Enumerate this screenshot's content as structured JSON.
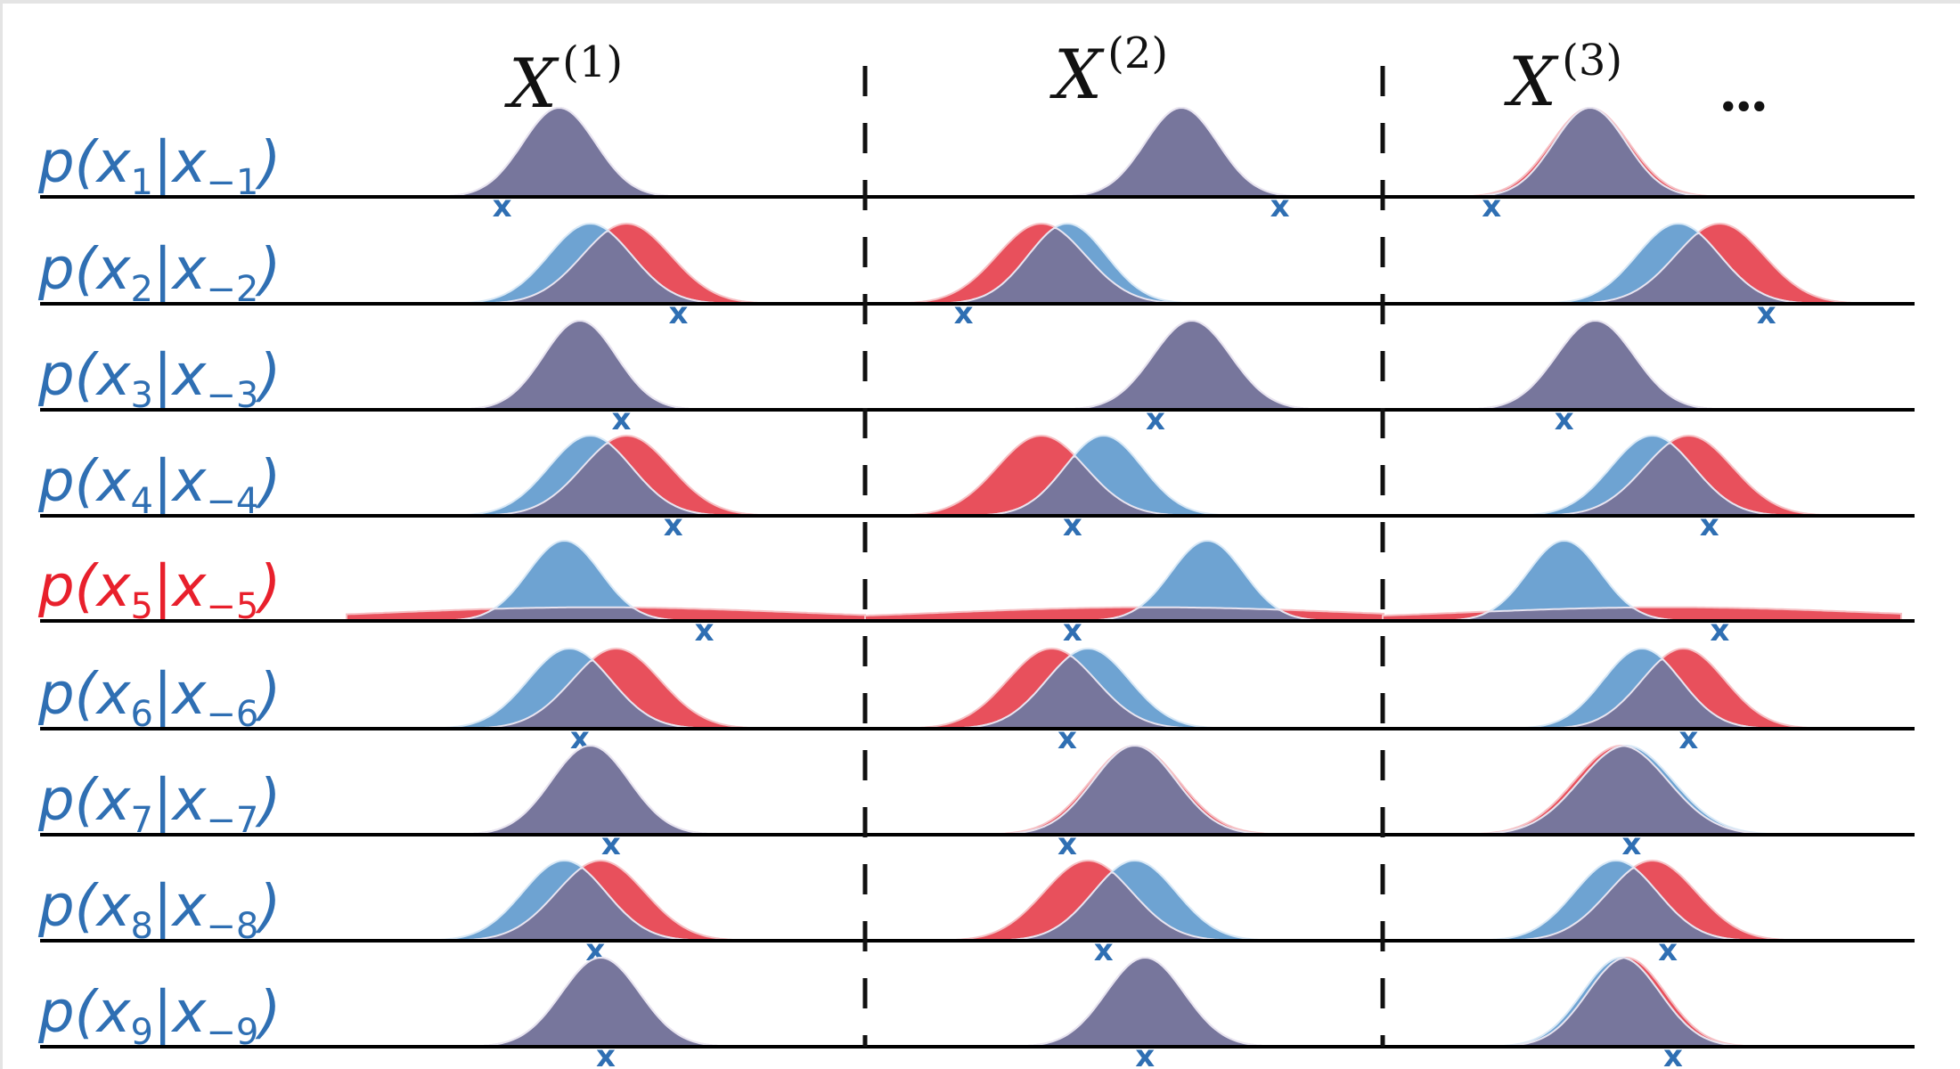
{
  "colors": {
    "blue": "#2f6fb3",
    "blue_fill": "#6ea3d2",
    "red_fill": "#e8505c",
    "red": "#e8202c",
    "overlap": "#77769c",
    "axis": "#000000"
  },
  "headers": [
    {
      "base": "X",
      "sup": "(1)"
    },
    {
      "base": "X",
      "sup": "(2)"
    },
    {
      "base": "X",
      "sup": "(3)"
    }
  ],
  "ellipsis": "...",
  "chart_data": {
    "type": "area",
    "description_units": "position within column (0-100)",
    "columns": [
      "X(1)",
      "X(2)",
      "X(3)"
    ],
    "rows": [
      {
        "label": {
          "p": "p(",
          "v": "x",
          "sub": "1",
          "bar": "|",
          "nv": "x",
          "nsub": "−1",
          "close": ")"
        },
        "highlight": false,
        "cells": [
          {
            "blue": [
              41,
              7
            ],
            "red": [
              41,
              7
            ],
            "marker": 30
          },
          {
            "blue": [
              61,
              7
            ],
            "red": [
              61,
              7
            ],
            "marker": 80
          },
          {
            "blue": [
              40,
              7
            ],
            "red": [
              40,
              7.5
            ],
            "marker": 21
          }
        ]
      },
      {
        "label": {
          "p": "p(",
          "v": "x",
          "sub": "2",
          "bar": "|",
          "nv": "x",
          "nsub": "−2",
          "close": ")"
        },
        "highlight": false,
        "cells": [
          {
            "blue": [
              47,
              8
            ],
            "red": [
              54,
              8.5
            ],
            "marker": 64
          },
          {
            "blue": [
              39,
              7.5
            ],
            "red": [
              34,
              8.5
            ],
            "marker": 19
          },
          {
            "blue": [
              57,
              8
            ],
            "red": [
              65,
              8.5
            ],
            "marker": 74
          }
        ]
      },
      {
        "label": {
          "p": "p(",
          "v": "x",
          "sub": "3",
          "bar": "|",
          "nv": "x",
          "nsub": "−3",
          "close": ")"
        },
        "highlight": false,
        "cells": [
          {
            "blue": [
              45,
              7
            ],
            "red": [
              45,
              7
            ],
            "marker": 53
          },
          {
            "blue": [
              63,
              7.5
            ],
            "red": [
              63,
              7.5
            ],
            "marker": 56
          },
          {
            "blue": [
              41,
              7.5
            ],
            "red": [
              41,
              7.5
            ],
            "marker": 35
          }
        ]
      },
      {
        "label": {
          "p": "p(",
          "v": "x",
          "sub": "4",
          "bar": "|",
          "nv": "x",
          "nsub": "−4",
          "close": ")"
        },
        "highlight": false,
        "cells": [
          {
            "blue": [
              47,
              8
            ],
            "red": [
              54,
              8.5
            ],
            "marker": 63
          },
          {
            "blue": [
              46,
              7.5
            ],
            "red": [
              34,
              8.5
            ],
            "marker": 40
          },
          {
            "blue": [
              52,
              8
            ],
            "red": [
              59,
              8.5
            ],
            "marker": 63
          }
        ]
      },
      {
        "label": {
          "p": "p(",
          "v": "x",
          "sub": "5",
          "bar": "|",
          "nv": "x",
          "nsub": "−5",
          "close": ")"
        },
        "highlight": true,
        "cells": [
          {
            "blue": [
              42,
              7
            ],
            "red": [
              48,
              40
            ],
            "marker": 69
          },
          {
            "blue": [
              66,
              7
            ],
            "red": [
              55,
              40
            ],
            "marker": 40
          },
          {
            "blue": [
              35,
              7
            ],
            "red": [
              55,
              40
            ],
            "marker": 65
          }
        ]
      },
      {
        "label": {
          "p": "p(",
          "v": "x",
          "sub": "6",
          "bar": "|",
          "nv": "x",
          "nsub": "−6",
          "close": ")"
        },
        "highlight": false,
        "cells": [
          {
            "blue": [
              43,
              8
            ],
            "red": [
              52,
              8.5
            ],
            "marker": 45
          },
          {
            "blue": [
              43,
              8
            ],
            "red": [
              36,
              8.5
            ],
            "marker": 39
          },
          {
            "blue": [
              50,
              7.5
            ],
            "red": [
              58,
              8
            ],
            "marker": 59
          }
        ]
      },
      {
        "label": {
          "p": "p(",
          "v": "x",
          "sub": "7",
          "bar": "|",
          "nv": "x",
          "nsub": "−7",
          "close": ")"
        },
        "highlight": false,
        "cells": [
          {
            "blue": [
              47,
              7.5
            ],
            "red": [
              47,
              7.5
            ],
            "marker": 51
          },
          {
            "blue": [
              52,
              8
            ],
            "red": [
              52,
              8.5
            ],
            "marker": 39
          },
          {
            "blue": [
              47,
              9
            ],
            "red": [
              46,
              9
            ],
            "marker": 48
          }
        ]
      },
      {
        "label": {
          "p": "p(",
          "v": "x",
          "sub": "8",
          "bar": "|",
          "nv": "x",
          "nsub": "−8",
          "close": ")"
        },
        "highlight": false,
        "cells": [
          {
            "blue": [
              42,
              8
            ],
            "red": [
              49,
              8.5
            ],
            "marker": 48
          },
          {
            "blue": [
              52,
              8
            ],
            "red": [
              43,
              8.5
            ],
            "marker": 46
          },
          {
            "blue": [
              45,
              8
            ],
            "red": [
              52,
              8.5
            ],
            "marker": 55
          }
        ]
      },
      {
        "label": {
          "p": "p(",
          "v": "x",
          "sub": "9",
          "bar": "|",
          "nv": "x",
          "nsub": "−9",
          "close": ")"
        },
        "highlight": false,
        "cells": [
          {
            "blue": [
              49,
              7.5
            ],
            "red": [
              49,
              7.5
            ],
            "marker": 50
          },
          {
            "blue": [
              54,
              7.5
            ],
            "red": [
              54,
              7.5
            ],
            "marker": 54
          },
          {
            "blue": [
              46,
              7.5
            ],
            "red": [
              47,
              7.5
            ],
            "marker": 56
          }
        ]
      }
    ]
  }
}
